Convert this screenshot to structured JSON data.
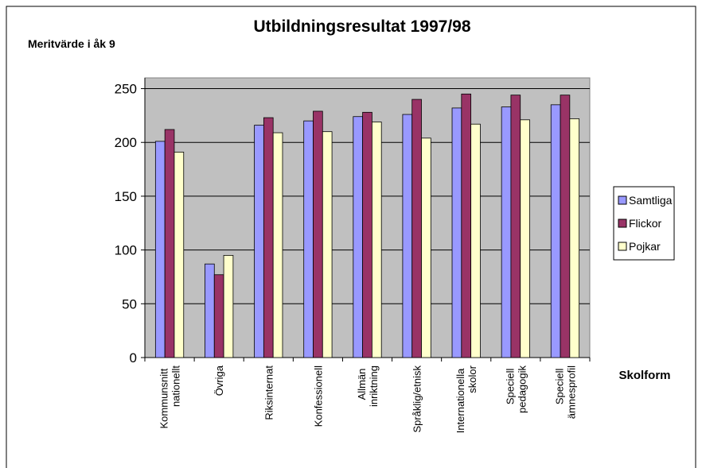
{
  "chart_data": {
    "type": "bar",
    "title": "Utbildningsresultat 1997/98",
    "y_label": "Meritvärde i åk 9",
    "x_label": "Skolform",
    "categories": [
      "Kommunsnitt nationellt",
      "Övriga",
      "Riksinternat",
      "Konfessionell",
      "Allmän inriktning",
      "Språklig/etnisk",
      "Internationella skolor",
      "Speciell pedagogik",
      "Speciell ämnesprofil"
    ],
    "series": [
      {
        "name": "Samtliga",
        "color": "#9999ff",
        "values": [
          201,
          87,
          216,
          220,
          224,
          226,
          232,
          233,
          235
        ]
      },
      {
        "name": "Flickor",
        "color": "#993366",
        "values": [
          212,
          77,
          223,
          229,
          228,
          240,
          245,
          244,
          244
        ]
      },
      {
        "name": "Pojkar",
        "color": "#ffffcc",
        "values": [
          191,
          95,
          209,
          210,
          219,
          204,
          217,
          221,
          222
        ]
      }
    ],
    "ylim": [
      0,
      260
    ],
    "yticks": [
      0,
      50,
      100,
      150,
      200,
      250
    ],
    "grid": true,
    "legend": "right"
  }
}
